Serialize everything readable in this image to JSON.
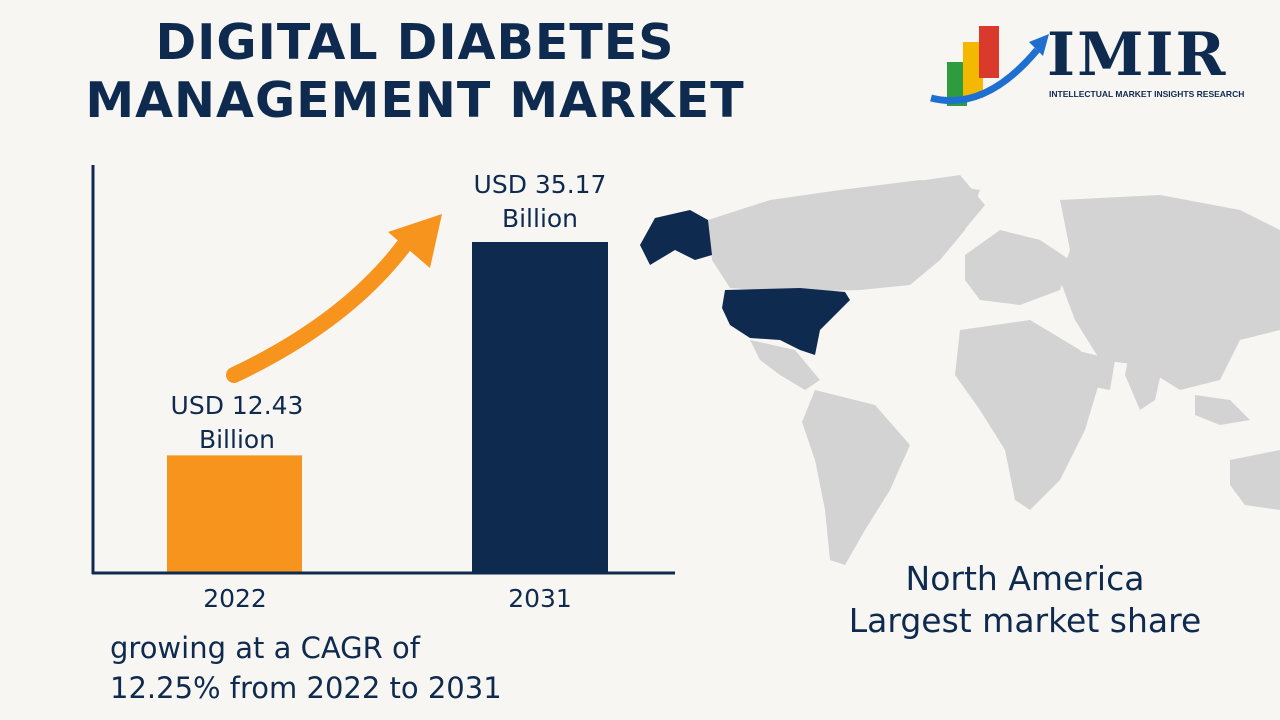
{
  "title": {
    "line1": "DIGITAL DIABETES",
    "line2": "MANAGEMENT MARKET"
  },
  "logo": {
    "name": "IMIR",
    "tagline": "INTELLECTUAL MARKET INSIGHTS RESEARCH"
  },
  "chart_data": {
    "type": "bar",
    "categories": [
      "2022",
      "2031"
    ],
    "values": [
      12.43,
      35.17
    ],
    "value_labels": [
      "USD 12.43 Billion",
      "USD 35.17 Billion"
    ],
    "value_label_lines": [
      [
        "USD 12.43",
        "Billion"
      ],
      [
        "USD 35.17",
        "Billion"
      ]
    ],
    "colors": [
      "#f7941d",
      "#0f2a4f"
    ],
    "ylim": [
      0,
      40
    ],
    "grid": false,
    "title": "",
    "xlabel": "",
    "ylabel": ""
  },
  "cagr": {
    "line1": "growing at a CAGR of",
    "line2": "12.25% from 2022 to 2031"
  },
  "region": {
    "line1": "North America",
    "line2": "Largest market share"
  },
  "colors": {
    "navy": "#0f2a4f",
    "orange": "#f7941d",
    "map_gray": "#d3d3d3"
  }
}
